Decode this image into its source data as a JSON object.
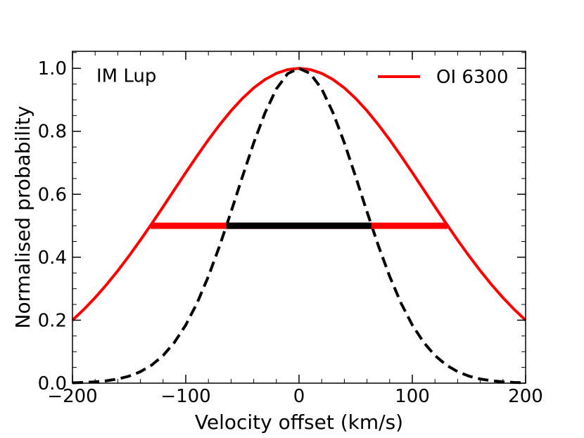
{
  "chart_data": {
    "type": "line",
    "annotation": "IM Lup",
    "xlabel": "Velocity offset (km/s)",
    "ylabel": "Normalised probability",
    "x": [
      -200,
      -190,
      -180,
      -170,
      -160,
      -150,
      -140,
      -130,
      -120,
      -110,
      -100,
      -90,
      -80,
      -70,
      -60,
      -50,
      -40,
      -30,
      -20,
      -10,
      0,
      10,
      20,
      30,
      40,
      50,
      60,
      70,
      80,
      90,
      100,
      110,
      120,
      130,
      140,
      150,
      160,
      170,
      180,
      190,
      200
    ],
    "series": [
      {
        "name": "OI 6300",
        "color": "#ff0000",
        "dashed": false,
        "values": [
          0.2,
          0.234,
          0.2716,
          0.3126,
          0.357,
          0.4045,
          0.4545,
          0.5066,
          0.5603,
          0.6146,
          0.6688,
          0.7219,
          0.773,
          0.8211,
          0.8652,
          0.9043,
          0.9377,
          0.9644,
          0.984,
          0.996,
          1,
          0.996,
          0.984,
          0.9644,
          0.9377,
          0.9043,
          0.8652,
          0.8211,
          0.773,
          0.7219,
          0.6688,
          0.6146,
          0.5603,
          0.5066,
          0.4545,
          0.4045,
          0.357,
          0.3126,
          0.2716,
          0.234,
          0.2
        ]
      },
      {
        "color": "#000000",
        "dashed": true,
        "values": [
          0.0012,
          0.0022,
          0.0042,
          0.0076,
          0.0132,
          0.0223,
          0.0365,
          0.0575,
          0.0878,
          0.1295,
          0.1846,
          0.2545,
          0.3392,
          0.437,
          0.5443,
          0.6555,
          0.7632,
          0.8589,
          0.9347,
          0.9832,
          1,
          0.9832,
          0.9347,
          0.8589,
          0.7632,
          0.6555,
          0.5443,
          0.437,
          0.3392,
          0.2545,
          0.1846,
          0.1295,
          0.0878,
          0.0575,
          0.0365,
          0.0223,
          0.0132,
          0.0076,
          0.0042,
          0.0022,
          0.0012
        ]
      }
    ],
    "fwhm_bars": [
      {
        "color": "#ff0000",
        "x": [
          -131,
          131
        ],
        "y": 0.5
      },
      {
        "color": "#000000",
        "x": [
          -64,
          64
        ],
        "y": 0.5
      }
    ],
    "xlim": [
      -200,
      200
    ],
    "ylim": [
      0,
      1.054
    ],
    "xticks": [
      {
        "value": -200,
        "label": "−200"
      },
      {
        "value": -100,
        "label": "−100"
      },
      0,
      100,
      200
    ],
    "yticks": [
      {
        "value": 0,
        "label": "0.0"
      },
      {
        "value": 0.2,
        "label": "0.2"
      },
      {
        "value": 0.4,
        "label": "0.4"
      },
      {
        "value": 0.6,
        "label": "0.6"
      },
      {
        "value": 0.8,
        "label": "0.8"
      },
      {
        "value": 1,
        "label": "1.0"
      }
    ],
    "minor_xticks": [
      -180,
      -160,
      -140,
      -120,
      -80,
      -60,
      -40,
      -20,
      20,
      40,
      60,
      80,
      120,
      140,
      160,
      180
    ],
    "minor_yticks": [
      0.05,
      0.1,
      0.15,
      0.25,
      0.3,
      0.35,
      0.45,
      0.5,
      0.55,
      0.65,
      0.7,
      0.75,
      0.85,
      0.9,
      0.95,
      1.05
    ],
    "legend": "upper right"
  }
}
